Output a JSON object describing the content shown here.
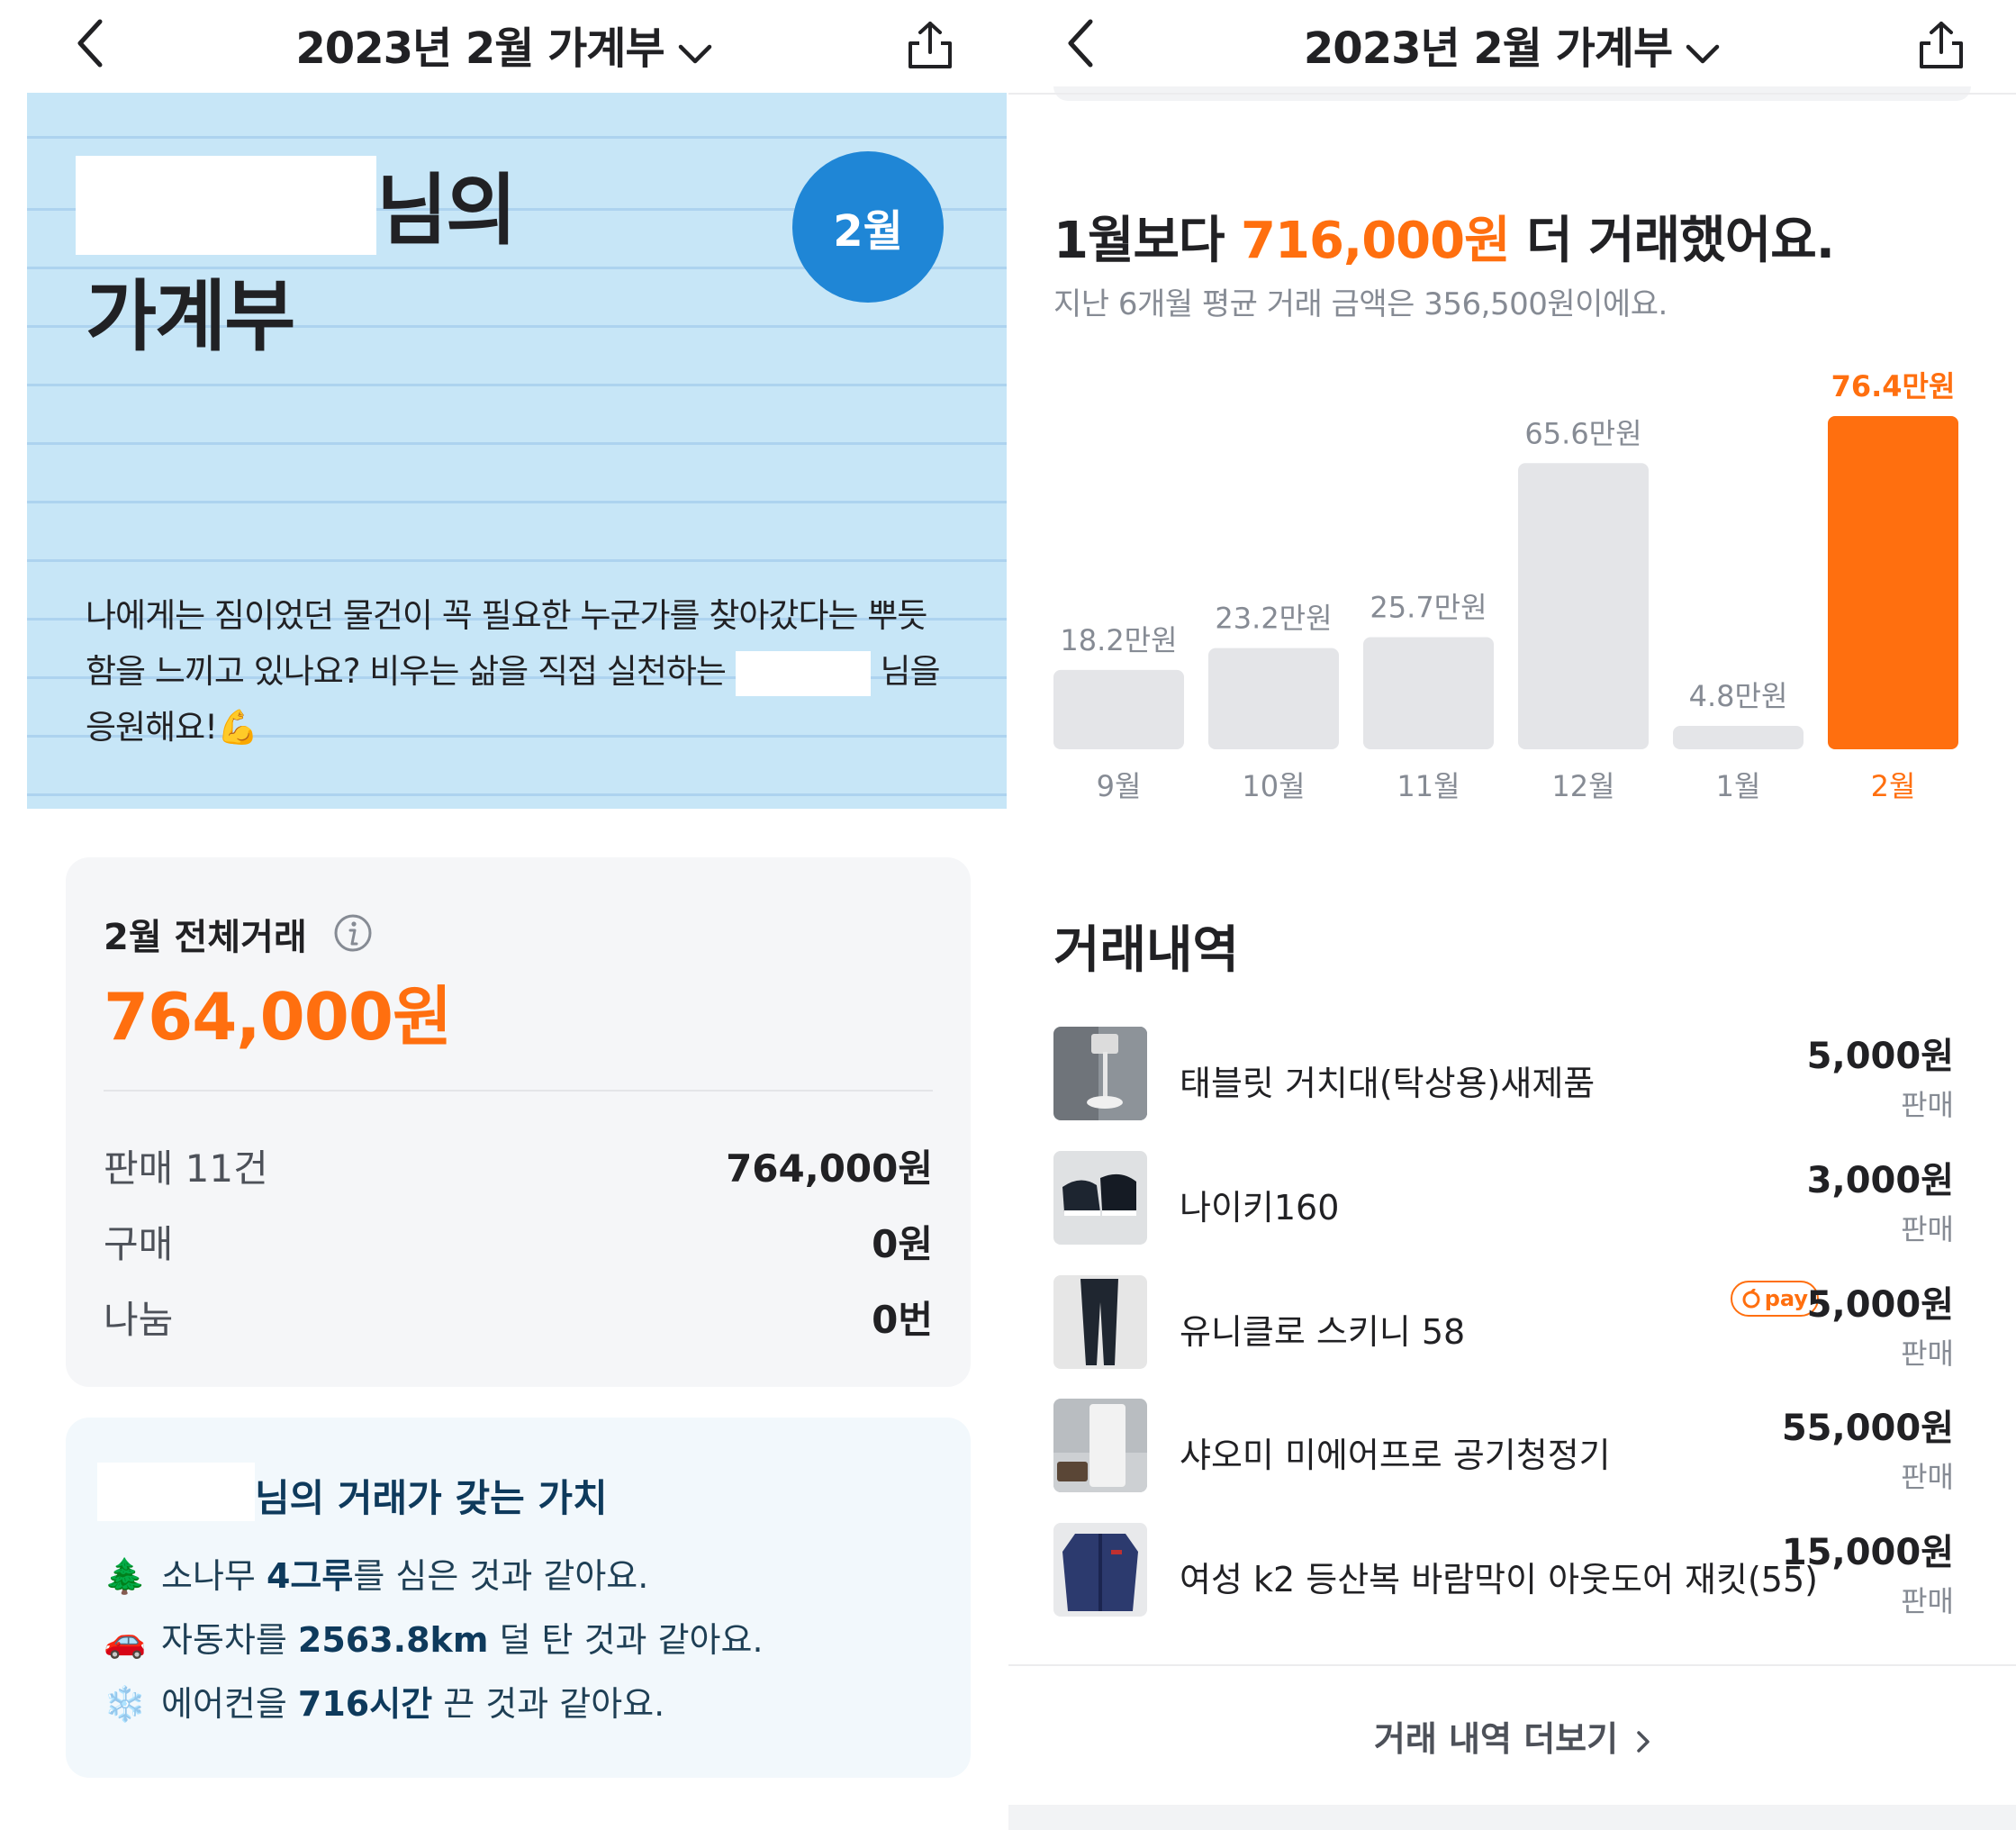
{
  "left": {
    "header": {
      "title": "2023년 2월 가계부"
    },
    "hero": {
      "name_suffix": "님의",
      "title_line2": "가계부",
      "month_badge": "2월",
      "desc_part1": "나에게는 짐이었던 물건이 꼭 필요한 누군가를 찾아갔다는 뿌듯함을 느끼고 있나요? 비우는 삶을 직접 실천하는",
      "desc_part2": "님을 응원해요!💪"
    },
    "summary": {
      "title": "2월 전체거래",
      "total": "764,000원",
      "rows": [
        {
          "label": "판매 11건",
          "value": "764,000원"
        },
        {
          "label": "구매",
          "value": "0원"
        },
        {
          "label": "나눔",
          "value": "0번"
        }
      ]
    },
    "value_card": {
      "title": "님의 거래가 갖는 가치",
      "rows": [
        {
          "emoji": "🌲",
          "pre": "소나무 ",
          "bold": "4그루",
          "post": "를 심은 것과 같아요."
        },
        {
          "emoji": "🚗",
          "pre": "자동차를 ",
          "bold": "2563.8km",
          "post": " 덜 탄 것과 같아요."
        },
        {
          "emoji": "❄️",
          "pre": "에어컨을 ",
          "bold": "716시간",
          "post": " 끈 것과 같아요."
        }
      ]
    }
  },
  "right": {
    "header": {
      "title": "2023년 2월 가계부"
    },
    "compare": {
      "pre": "1월보다 ",
      "amount": "716,000원",
      "post": " 더 거래했어요."
    },
    "avg_text": "지난 6개월 평균 거래 금액은 356,500원이에요.",
    "history": {
      "title": "거래내역",
      "items": [
        {
          "name": "태블릿 거치대(탁상용)새제품",
          "price": "5,000원",
          "type": "판매",
          "pay": "",
          "thumb": "tablet-stand"
        },
        {
          "name": "나이키160",
          "price": "3,000원",
          "type": "판매",
          "pay": "",
          "thumb": "sneakers"
        },
        {
          "name": "유니클로 스키니 58",
          "price": "5,000원",
          "type": "판매",
          "pay": "pay",
          "thumb": "jeans"
        },
        {
          "name": "샤오미 미에어프로 공기청정기",
          "price": "55,000원",
          "type": "판매",
          "pay": "",
          "thumb": "air-purifier"
        },
        {
          "name": "여성 k2 등산복 바람막이 아웃도어 재킷(55)",
          "price": "15,000원",
          "type": "판매",
          "pay": "",
          "thumb": "jacket"
        }
      ],
      "more_label": "거래 내역 더보기"
    }
  },
  "chart_data": {
    "type": "bar",
    "categories": [
      "9월",
      "10월",
      "11월",
      "12월",
      "1월",
      "2월"
    ],
    "values": [
      18.2,
      23.2,
      25.7,
      65.6,
      4.8,
      76.4
    ],
    "value_labels": [
      "18.2만원",
      "23.2만원",
      "25.7만원",
      "65.6만원",
      "4.8만원",
      "76.4만원"
    ],
    "unit": "만원",
    "highlight_index": 5,
    "colors": {
      "default": "#e4e5e8",
      "highlight": "#ff6f0f",
      "label": "#868b94"
    }
  },
  "colors": {
    "accent": "#ff6f0f",
    "hero_bg": "#c7e6f7",
    "badge": "#1f86d6"
  }
}
